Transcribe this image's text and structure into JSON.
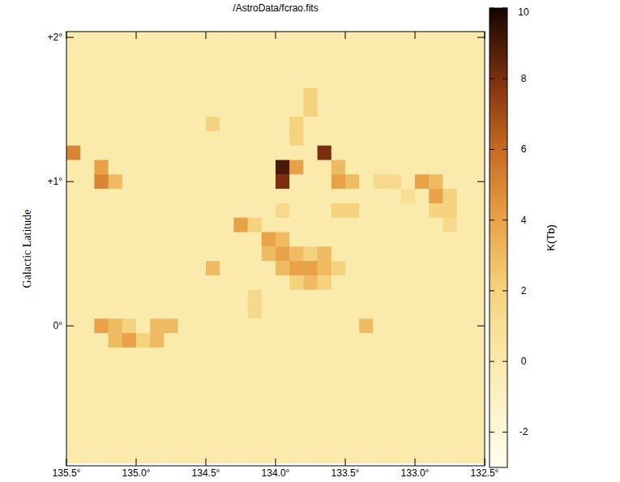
{
  "chart_data": {
    "type": "heatmap",
    "title": "/AstroData/fcrao.fits",
    "y_label": "Galactic Latitude",
    "colorbar_label": "K(Tb)",
    "x": [
      135.45,
      135.35,
      135.25,
      135.15,
      135.05,
      134.95,
      134.85,
      134.75,
      134.65,
      134.55,
      134.45,
      134.35,
      134.25,
      134.15,
      134.05,
      133.95,
      133.85,
      133.75,
      133.65,
      133.55,
      133.45,
      133.35,
      133.25,
      133.15,
      133.05,
      132.95,
      132.85,
      132.75,
      132.65,
      132.55
    ],
    "y": [
      2.0,
      1.9,
      1.8,
      1.7,
      1.6,
      1.5,
      1.4,
      1.3,
      1.2,
      1.1,
      1.0,
      0.9,
      0.8,
      0.7,
      0.6,
      0.5,
      0.4,
      0.3,
      0.2,
      0.1,
      0.0,
      -0.1,
      -0.2,
      -0.3,
      -0.4,
      -0.5,
      -0.6,
      -0.7,
      -0.8,
      -0.9
    ],
    "cells": [
      [
        0,
        0,
        0,
        0,
        0,
        0,
        0,
        0,
        0,
        0,
        0,
        0,
        0,
        0,
        0,
        0,
        0,
        0,
        0,
        0,
        0,
        0,
        0,
        0,
        0,
        0,
        0,
        0,
        0,
        0
      ],
      [
        0,
        0,
        0,
        0,
        0,
        0,
        0,
        0,
        0,
        0,
        0,
        0,
        0,
        0,
        0,
        0,
        0,
        0,
        0,
        0,
        0,
        0,
        0,
        0,
        0,
        0,
        0,
        0,
        0,
        0
      ],
      [
        0,
        0,
        0,
        0,
        0,
        0,
        0,
        0,
        0,
        0,
        0,
        0,
        0,
        0,
        0,
        0,
        0,
        0,
        0,
        0,
        0,
        0,
        0,
        0,
        0,
        0,
        0,
        0,
        0,
        0
      ],
      [
        0,
        0,
        0,
        0,
        0,
        0,
        0,
        0,
        0,
        0,
        0,
        0,
        0,
        0,
        0,
        0,
        0,
        0,
        0,
        0,
        0,
        0,
        0,
        0,
        0,
        0,
        0,
        0,
        0,
        0
      ],
      [
        0,
        0,
        0,
        0,
        0,
        0,
        0,
        0,
        0,
        0,
        0,
        0,
        0,
        0,
        0,
        0,
        0,
        2,
        0,
        0,
        0,
        0,
        0,
        0,
        0,
        0,
        0,
        0,
        0,
        0
      ],
      [
        0,
        0,
        0,
        0,
        0,
        0,
        0,
        0,
        0,
        0,
        0,
        0,
        0,
        0,
        0,
        0,
        0,
        2,
        0,
        0,
        0,
        0,
        0,
        0,
        0,
        0,
        0,
        0,
        0,
        0
      ],
      [
        0,
        0,
        0,
        0,
        0,
        0,
        0,
        0,
        0,
        0,
        2,
        0,
        0,
        0,
        0,
        0,
        2,
        0,
        0,
        0,
        0,
        0,
        0,
        0,
        0,
        0,
        0,
        0,
        0,
        0
      ],
      [
        0,
        0,
        0,
        0,
        0,
        0,
        0,
        0,
        0,
        0,
        0,
        0,
        0,
        0,
        0,
        0,
        2,
        0,
        0,
        0,
        0,
        0,
        0,
        0,
        0,
        0,
        0,
        0,
        0,
        0
      ],
      [
        5,
        0,
        0,
        0,
        0,
        0,
        0,
        0,
        0,
        0,
        0,
        0,
        0,
        0,
        0,
        0,
        0,
        0,
        8,
        0,
        0,
        0,
        0,
        0,
        0,
        0,
        0,
        0,
        0,
        0
      ],
      [
        0,
        0,
        4,
        0,
        0,
        0,
        0,
        0,
        0,
        0,
        0,
        0,
        0,
        0,
        0,
        9,
        4,
        0,
        0,
        3,
        0,
        0,
        0,
        0,
        0,
        0,
        0,
        0,
        0,
        0
      ],
      [
        0,
        0,
        5,
        3,
        0,
        0,
        0,
        0,
        0,
        0,
        0,
        0,
        0,
        0,
        0,
        8,
        0,
        0,
        0,
        4,
        3,
        0,
        1.5,
        1.5,
        0,
        4,
        3,
        0,
        0,
        0
      ],
      [
        0,
        0,
        0,
        0,
        0,
        0,
        0,
        0,
        0,
        0,
        0,
        0,
        0,
        0,
        0,
        0,
        0,
        0,
        0,
        0,
        0,
        0,
        0,
        0,
        1,
        0,
        4,
        2,
        0,
        0
      ],
      [
        0,
        0,
        0,
        0,
        0,
        0,
        0,
        0,
        0,
        0,
        0,
        0,
        0,
        0,
        0,
        1.5,
        0,
        0,
        0,
        2,
        2,
        0,
        0,
        0,
        0,
        0,
        2,
        2,
        0,
        0
      ],
      [
        0,
        0,
        0,
        0,
        0,
        0,
        0,
        0,
        0,
        0,
        0,
        0,
        4,
        2,
        0,
        0,
        0,
        0,
        0,
        0,
        0,
        0,
        0,
        0,
        0,
        0,
        0,
        1.5,
        0,
        0
      ],
      [
        0,
        0,
        0,
        0,
        0,
        0,
        0,
        0,
        0,
        0,
        0,
        0,
        0,
        0,
        4,
        3,
        0,
        0,
        0,
        0,
        0,
        0,
        0,
        0,
        0,
        0,
        0,
        0,
        0,
        0
      ],
      [
        0,
        0,
        0,
        0,
        0,
        0,
        0,
        0,
        0,
        0,
        0,
        0,
        0,
        0,
        3,
        4,
        3,
        2,
        3,
        0,
        0,
        0,
        0,
        0,
        0,
        0,
        0,
        0,
        0,
        0
      ],
      [
        0,
        0,
        0,
        0,
        0,
        0,
        0,
        0,
        0,
        0,
        3,
        0,
        0,
        0,
        0,
        3,
        4,
        4,
        3,
        2,
        0,
        0,
        0,
        0,
        0,
        0,
        0,
        0,
        0,
        0
      ],
      [
        0,
        0,
        0,
        0,
        0,
        0,
        0,
        0,
        0,
        0,
        0,
        0,
        0,
        0,
        0,
        0,
        2,
        3,
        2,
        0,
        0,
        0,
        0,
        0,
        0,
        0,
        0,
        0,
        0,
        0
      ],
      [
        0,
        0,
        0,
        0,
        0,
        0,
        0,
        0,
        0,
        0,
        0,
        0,
        0,
        1.5,
        0,
        0,
        0,
        0,
        0,
        0,
        0,
        0,
        0,
        0,
        0,
        0,
        0,
        0,
        0,
        0
      ],
      [
        0,
        0,
        0,
        0,
        0,
        0,
        0,
        0,
        0,
        0,
        0,
        0,
        0,
        1.5,
        0,
        0,
        0,
        0,
        0,
        0,
        0,
        0,
        0,
        0,
        0,
        0,
        0,
        0,
        0,
        0
      ],
      [
        0,
        0,
        4,
        3,
        2,
        0,
        3,
        3,
        0,
        0,
        0,
        0,
        0,
        0,
        0,
        0,
        0,
        0,
        0,
        0,
        0,
        3,
        0,
        0,
        0,
        0,
        0,
        0,
        0,
        0
      ],
      [
        0,
        0,
        0,
        3,
        4,
        2,
        3,
        0,
        0,
        0,
        0,
        0,
        0,
        0,
        0,
        0,
        0,
        0,
        0,
        0,
        0,
        0,
        0,
        0,
        0,
        0,
        0,
        0,
        0,
        0
      ],
      [
        0,
        0,
        0,
        0,
        0,
        0,
        0,
        0,
        0,
        0,
        0,
        0,
        0,
        0,
        0,
        0,
        0,
        0,
        0,
        0,
        0,
        0,
        0,
        0,
        0,
        0,
        0,
        0,
        0,
        0
      ],
      [
        0,
        0,
        0,
        0,
        0,
        0,
        0,
        0,
        0,
        0,
        0,
        0,
        0,
        0,
        0,
        0,
        0,
        0,
        0,
        0,
        0,
        0,
        0,
        0,
        0,
        0,
        0,
        0,
        0,
        0
      ],
      [
        0,
        0,
        0,
        0,
        0,
        0,
        0,
        0,
        0,
        0,
        0,
        0,
        0,
        0,
        0,
        0,
        0,
        0,
        0,
        0,
        0,
        0,
        0,
        0,
        0,
        0,
        0,
        0,
        0,
        0
      ],
      [
        0,
        0,
        0,
        0,
        0,
        0,
        0,
        0,
        0,
        0,
        0,
        0,
        0,
        0,
        0,
        0,
        0,
        0,
        0,
        0,
        0,
        0,
        0,
        0,
        0,
        0,
        0,
        0,
        0,
        0
      ],
      [
        0,
        0,
        0,
        0,
        0,
        0,
        0,
        0,
        0,
        0,
        0,
        0,
        0,
        0,
        0,
        0,
        0,
        0,
        0,
        0,
        0,
        0,
        0,
        0,
        0,
        0,
        0,
        0,
        0,
        0
      ],
      [
        0,
        0,
        0,
        0,
        0,
        0,
        0,
        0,
        0,
        0,
        0,
        0,
        0,
        0,
        0,
        0,
        0,
        0,
        0,
        0,
        0,
        0,
        0,
        0,
        0,
        0,
        0,
        0,
        0,
        0
      ],
      [
        0,
        0,
        0,
        0,
        0,
        0,
        0,
        0,
        0,
        0,
        0,
        0,
        0,
        0,
        0,
        0,
        0,
        0,
        0,
        0,
        0,
        0,
        0,
        0,
        0,
        0,
        0,
        0,
        0,
        0
      ],
      [
        0,
        0,
        0,
        0,
        0,
        0,
        0,
        0,
        0,
        0,
        0,
        0,
        0,
        0,
        0,
        0,
        0,
        0,
        0,
        0,
        0,
        0,
        0,
        0,
        0,
        0,
        0,
        0,
        0,
        0
      ]
    ],
    "xlim": [
      135.5,
      132.5
    ],
    "ylim": [
      -0.97,
      2.04
    ],
    "xticks": [
      {
        "value": 135.5,
        "label": "135.5°"
      },
      {
        "value": 135.0,
        "label": "135.0°"
      },
      {
        "value": 134.5,
        "label": "134.5°"
      },
      {
        "value": 134.0,
        "label": "134.0°"
      },
      {
        "value": 133.5,
        "label": "133.5°"
      },
      {
        "value": 133.0,
        "label": "133.0°"
      },
      {
        "value": 132.5,
        "label": "132.5°"
      }
    ],
    "yticks": [
      {
        "value": 2,
        "label": "+2°"
      },
      {
        "value": 1,
        "label": "+1°"
      },
      {
        "value": 0,
        "label": "0°"
      }
    ],
    "colorbar_range": [
      -3,
      10
    ],
    "colorbar_ticks": [
      -2,
      0,
      2,
      4,
      6,
      8,
      10
    ]
  }
}
